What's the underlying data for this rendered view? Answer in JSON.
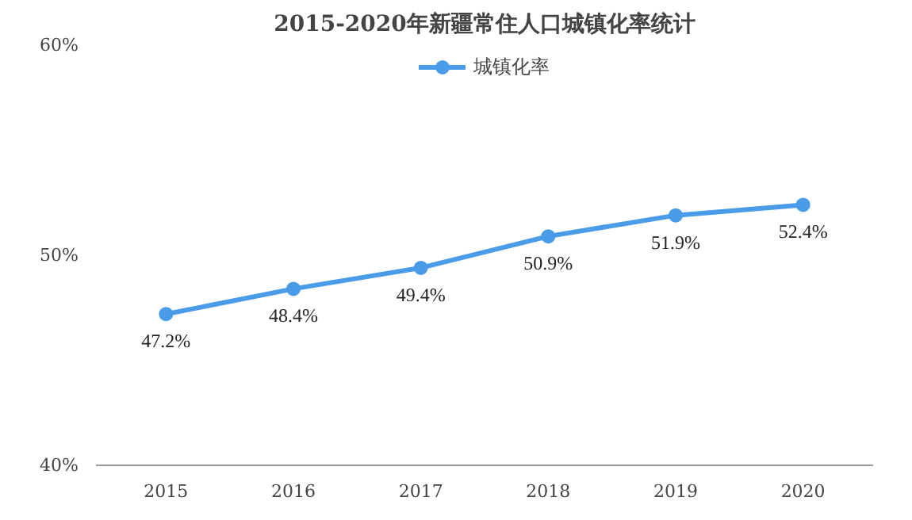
{
  "chart_data": {
    "type": "line",
    "title": "2015-2020年新疆常住人口城镇化率统计",
    "categories": [
      "2015",
      "2016",
      "2017",
      "2018",
      "2019",
      "2020"
    ],
    "series": [
      {
        "name": "城镇化率",
        "color": "#4a9be8",
        "values": [
          47.2,
          48.4,
          49.4,
          50.9,
          51.9,
          52.4
        ],
        "value_labels": [
          "47.2%",
          "48.4%",
          "49.4%",
          "50.9%",
          "51.9%",
          "52.4%"
        ]
      }
    ],
    "ylim": [
      40,
      60
    ],
    "yticks": [
      {
        "value": 40,
        "label": "40%"
      },
      {
        "value": 50,
        "label": "50%"
      },
      {
        "value": 60,
        "label": "60%"
      }
    ],
    "legend": "top",
    "marker": "circle",
    "line_style": "solid",
    "grid": false
  }
}
